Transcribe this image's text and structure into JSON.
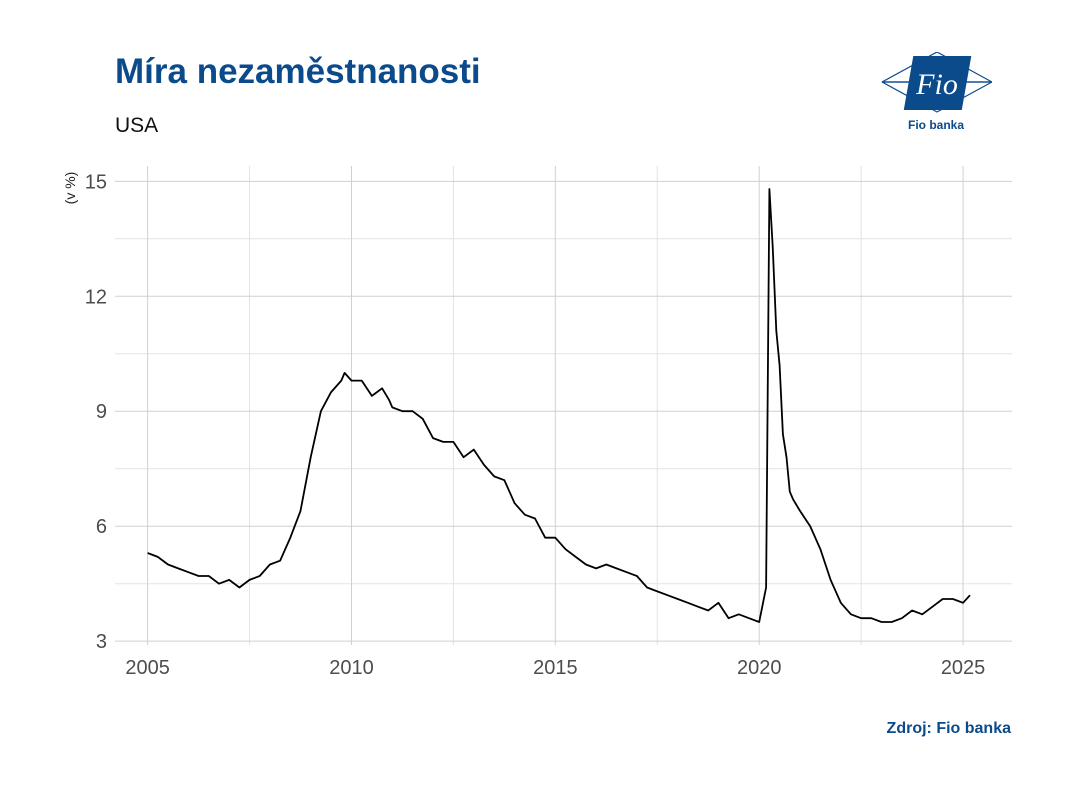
{
  "title": "Míra nezaměstnanosti",
  "subtitle": "USA",
  "source": "Zdroj: Fio banka",
  "logo": {
    "text": "Fio",
    "caption": "Fio banka",
    "color": "#0b4a8b"
  },
  "chart_data": {
    "type": "line",
    "title": "Míra nezaměstnanosti",
    "subtitle": "USA",
    "ylabel": "(v %)",
    "xlim": [
      2004.2,
      2026.2
    ],
    "ylim": [
      2.9,
      15.4
    ],
    "x_ticks": [
      2005,
      2010,
      2015,
      2020,
      2025
    ],
    "x_tick_labels": [
      "2005",
      "2010",
      "2015",
      "2020",
      "2025"
    ],
    "y_ticks": [
      3,
      6,
      9,
      12,
      15
    ],
    "y_tick_labels": [
      "3",
      "6",
      "9",
      "12",
      "15"
    ],
    "grid": true,
    "line_color": "#000000",
    "series": [
      {
        "x": [
          2005.0,
          2005.25,
          2005.5,
          2005.75,
          2006.0,
          2006.25,
          2006.5,
          2006.75,
          2007.0,
          2007.25,
          2007.5,
          2007.75,
          2008.0,
          2008.25,
          2008.5,
          2008.75,
          2009.0,
          2009.25,
          2009.5,
          2009.75,
          2009.83,
          2010.0,
          2010.25,
          2010.5,
          2010.75,
          2010.92,
          2011.0,
          2011.25,
          2011.5,
          2011.75,
          2012.0,
          2012.25,
          2012.5,
          2012.75,
          2013.0,
          2013.25,
          2013.5,
          2013.75,
          2014.0,
          2014.25,
          2014.5,
          2014.75,
          2015.0,
          2015.25,
          2015.5,
          2015.75,
          2016.0,
          2016.25,
          2016.5,
          2016.75,
          2017.0,
          2017.25,
          2017.5,
          2017.75,
          2018.0,
          2018.25,
          2018.5,
          2018.75,
          2019.0,
          2019.25,
          2019.5,
          2019.75,
          2020.0,
          2020.17,
          2020.25,
          2020.33,
          2020.42,
          2020.5,
          2020.58,
          2020.67,
          2020.75,
          2020.83,
          2021.0,
          2021.25,
          2021.5,
          2021.75,
          2022.0,
          2022.25,
          2022.5,
          2022.75,
          2023.0,
          2023.25,
          2023.5,
          2023.75,
          2024.0,
          2024.25,
          2024.5,
          2024.75,
          2025.0,
          2025.17
        ],
        "y": [
          5.3,
          5.2,
          5.0,
          4.9,
          4.8,
          4.7,
          4.7,
          4.5,
          4.6,
          4.4,
          4.6,
          4.7,
          5.0,
          5.1,
          5.7,
          6.4,
          7.8,
          9.0,
          9.5,
          9.8,
          10.0,
          9.8,
          9.8,
          9.4,
          9.6,
          9.3,
          9.1,
          9.0,
          9.0,
          8.8,
          8.3,
          8.2,
          8.2,
          7.8,
          8.0,
          7.6,
          7.3,
          7.2,
          6.6,
          6.3,
          6.2,
          5.7,
          5.7,
          5.4,
          5.2,
          5.0,
          4.9,
          5.0,
          4.9,
          4.8,
          4.7,
          4.4,
          4.3,
          4.2,
          4.1,
          4.0,
          3.9,
          3.8,
          4.0,
          3.6,
          3.7,
          3.6,
          3.5,
          4.4,
          14.8,
          13.3,
          11.1,
          10.2,
          8.4,
          7.8,
          6.9,
          6.7,
          6.4,
          6.0,
          5.4,
          4.6,
          4.0,
          3.7,
          3.6,
          3.6,
          3.5,
          3.5,
          3.6,
          3.8,
          3.7,
          3.9,
          4.1,
          4.1,
          4.0,
          4.2
        ]
      }
    ]
  }
}
